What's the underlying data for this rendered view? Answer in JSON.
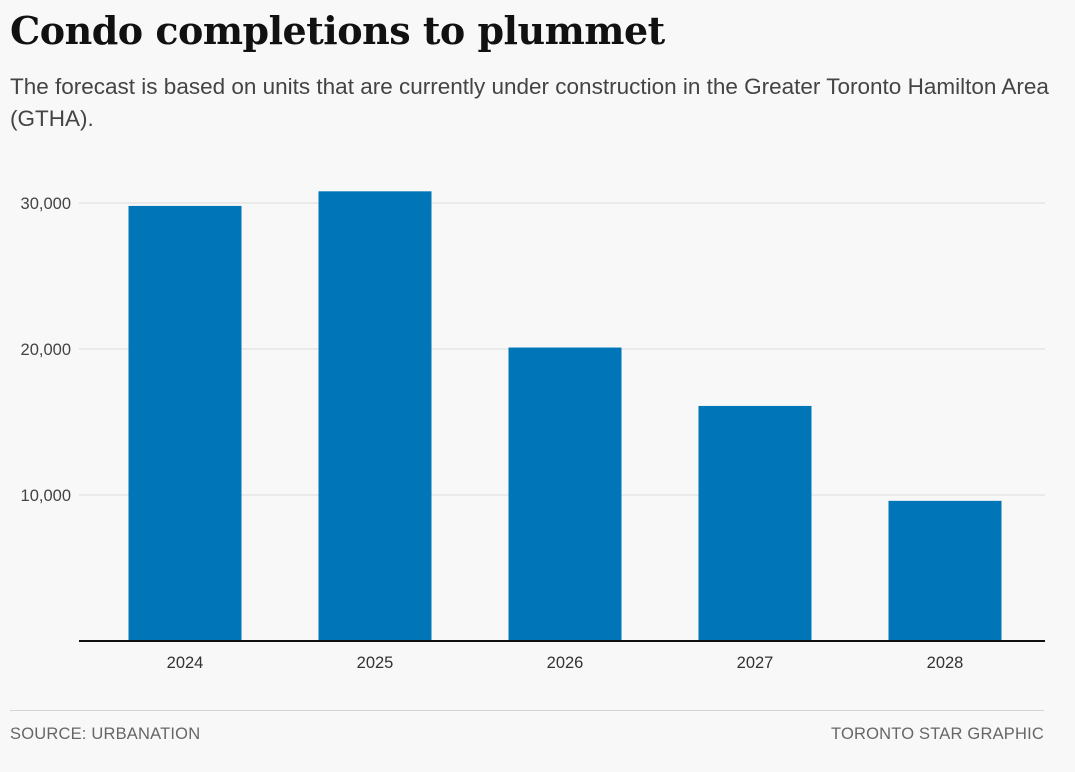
{
  "header": {
    "title": "Condo completions to plummet",
    "subtitle": "The forecast is based on units that are currently under construction in the Greater Toronto Hamilton Area (GTHA)."
  },
  "chart_data": {
    "type": "bar",
    "categories": [
      "2024",
      "2025",
      "2026",
      "2027",
      "2028"
    ],
    "values": [
      29800,
      30800,
      20100,
      16100,
      9600
    ],
    "yticks": [
      10000,
      20000,
      30000
    ],
    "ytick_labels": [
      "10,000",
      "20,000",
      "30,000"
    ],
    "ylim": [
      0,
      32000
    ],
    "grid": true,
    "bar_color": "#0076b9"
  },
  "footer": {
    "source": "SOURCE: URBANATION",
    "credit": "TORONTO STAR GRAPHIC"
  }
}
